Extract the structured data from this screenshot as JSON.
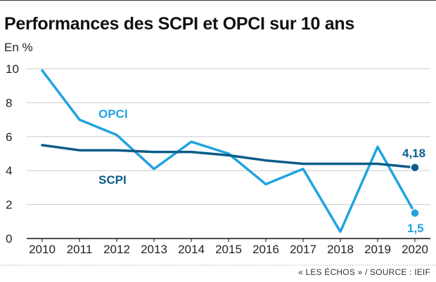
{
  "header": {
    "title": "Performances des SCPI et OPCI sur 10 ans",
    "unit": "En %"
  },
  "footer": {
    "source": "« LES ÉCHOS » / SOURCE : IEIF"
  },
  "colors": {
    "opci": "#21a3e0",
    "scpi": "#0b5d87",
    "grid": "#cccccc",
    "axis": "#111111",
    "text": "#222222"
  },
  "chart_data": {
    "type": "line",
    "title": "Performances des SCPI et OPCI sur 10 ans",
    "ylabel": "En %",
    "xlabel": "",
    "x": [
      2010,
      2011,
      2012,
      2013,
      2014,
      2015,
      2016,
      2017,
      2018,
      2019,
      2020
    ],
    "ylim": [
      0,
      10
    ],
    "yticks": [
      0,
      2,
      4,
      6,
      8,
      10
    ],
    "grid": true,
    "series": [
      {
        "name": "OPCI",
        "color": "#21a3e0",
        "values": [
          9.9,
          7.0,
          6.1,
          4.1,
          5.7,
          5.0,
          3.2,
          4.1,
          0.4,
          5.4,
          1.5
        ],
        "end_label": "1,5"
      },
      {
        "name": "SCPI",
        "color": "#0b5d87",
        "values": [
          5.5,
          5.2,
          5.2,
          5.1,
          5.1,
          4.9,
          4.6,
          4.4,
          4.4,
          4.4,
          4.18
        ],
        "end_label": "4,18"
      }
    ]
  }
}
